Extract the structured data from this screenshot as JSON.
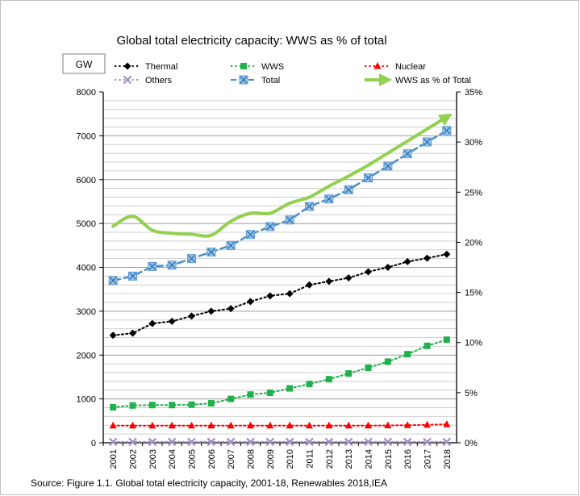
{
  "chart_data": {
    "type": "line",
    "title": "Global total electricity capacity: WWS as % of total",
    "unit_label": "GW",
    "source": "Source: Figure 1.1. Global total electricity capacity, 2001-18, Renewables 2018,IEA",
    "categories": [
      "2001",
      "2002",
      "2003",
      "2004",
      "2005",
      "2006",
      "2007",
      "2008",
      "2009",
      "2010",
      "2011",
      "2012",
      "2013",
      "2014",
      "2015",
      "2016",
      "2017",
      "2018"
    ],
    "y_left": {
      "min": 0,
      "max": 8000,
      "ticks": [
        "0",
        "1000",
        "2000",
        "3000",
        "4000",
        "5000",
        "6000",
        "7000",
        "8000"
      ]
    },
    "y_right": {
      "min": 0,
      "max": 35,
      "ticks": [
        "0%",
        "5%",
        "10%",
        "15%",
        "20%",
        "25%",
        "30%",
        "35%"
      ]
    },
    "grid": true,
    "legend_position": "top",
    "series": [
      {
        "name": "Thermal",
        "axis": "left",
        "color": "#000000",
        "style": "dotted",
        "marker": "diamond",
        "values": [
          2450,
          2500,
          2720,
          2770,
          2890,
          3000,
          3060,
          3220,
          3350,
          3400,
          3600,
          3680,
          3760,
          3900,
          4000,
          4130,
          4210,
          4300
        ]
      },
      {
        "name": "WWS",
        "axis": "left",
        "color": "#21b04b",
        "style": "dotted",
        "marker": "square",
        "values": [
          810,
          850,
          860,
          860,
          870,
          900,
          1000,
          1100,
          1140,
          1240,
          1340,
          1450,
          1580,
          1710,
          1850,
          2020,
          2210,
          2350
        ]
      },
      {
        "name": "Nuclear",
        "axis": "left",
        "color": "#ff0000",
        "style": "dotted",
        "marker": "triangle",
        "values": [
          390,
          390,
          390,
          390,
          390,
          390,
          390,
          390,
          390,
          390,
          390,
          390,
          390,
          390,
          395,
          400,
          410,
          420
        ]
      },
      {
        "name": "Others",
        "axis": "left",
        "color": "#a38ec2",
        "style": "dotted",
        "marker": "x",
        "values": [
          20,
          20,
          20,
          20,
          20,
          20,
          20,
          20,
          20,
          20,
          20,
          20,
          20,
          20,
          20,
          20,
          20,
          20
        ]
      },
      {
        "name": "Total",
        "axis": "left",
        "color": "#4a8fc4",
        "style": "dashed",
        "marker": "boxx",
        "values": [
          3700,
          3800,
          4020,
          4050,
          4200,
          4350,
          4500,
          4750,
          4930,
          5080,
          5390,
          5560,
          5770,
          6040,
          6310,
          6590,
          6860,
          7120
        ]
      },
      {
        "name": "WWS as % of Total",
        "axis": "right",
        "color": "#92d050",
        "style": "solid",
        "marker": "arrow",
        "values": [
          21.6,
          22.6,
          21.2,
          20.9,
          20.8,
          20.7,
          22.1,
          22.9,
          22.9,
          23.9,
          24.5,
          25.6,
          26.6,
          27.7,
          28.9,
          30.1,
          31.3,
          32.5
        ]
      }
    ]
  }
}
